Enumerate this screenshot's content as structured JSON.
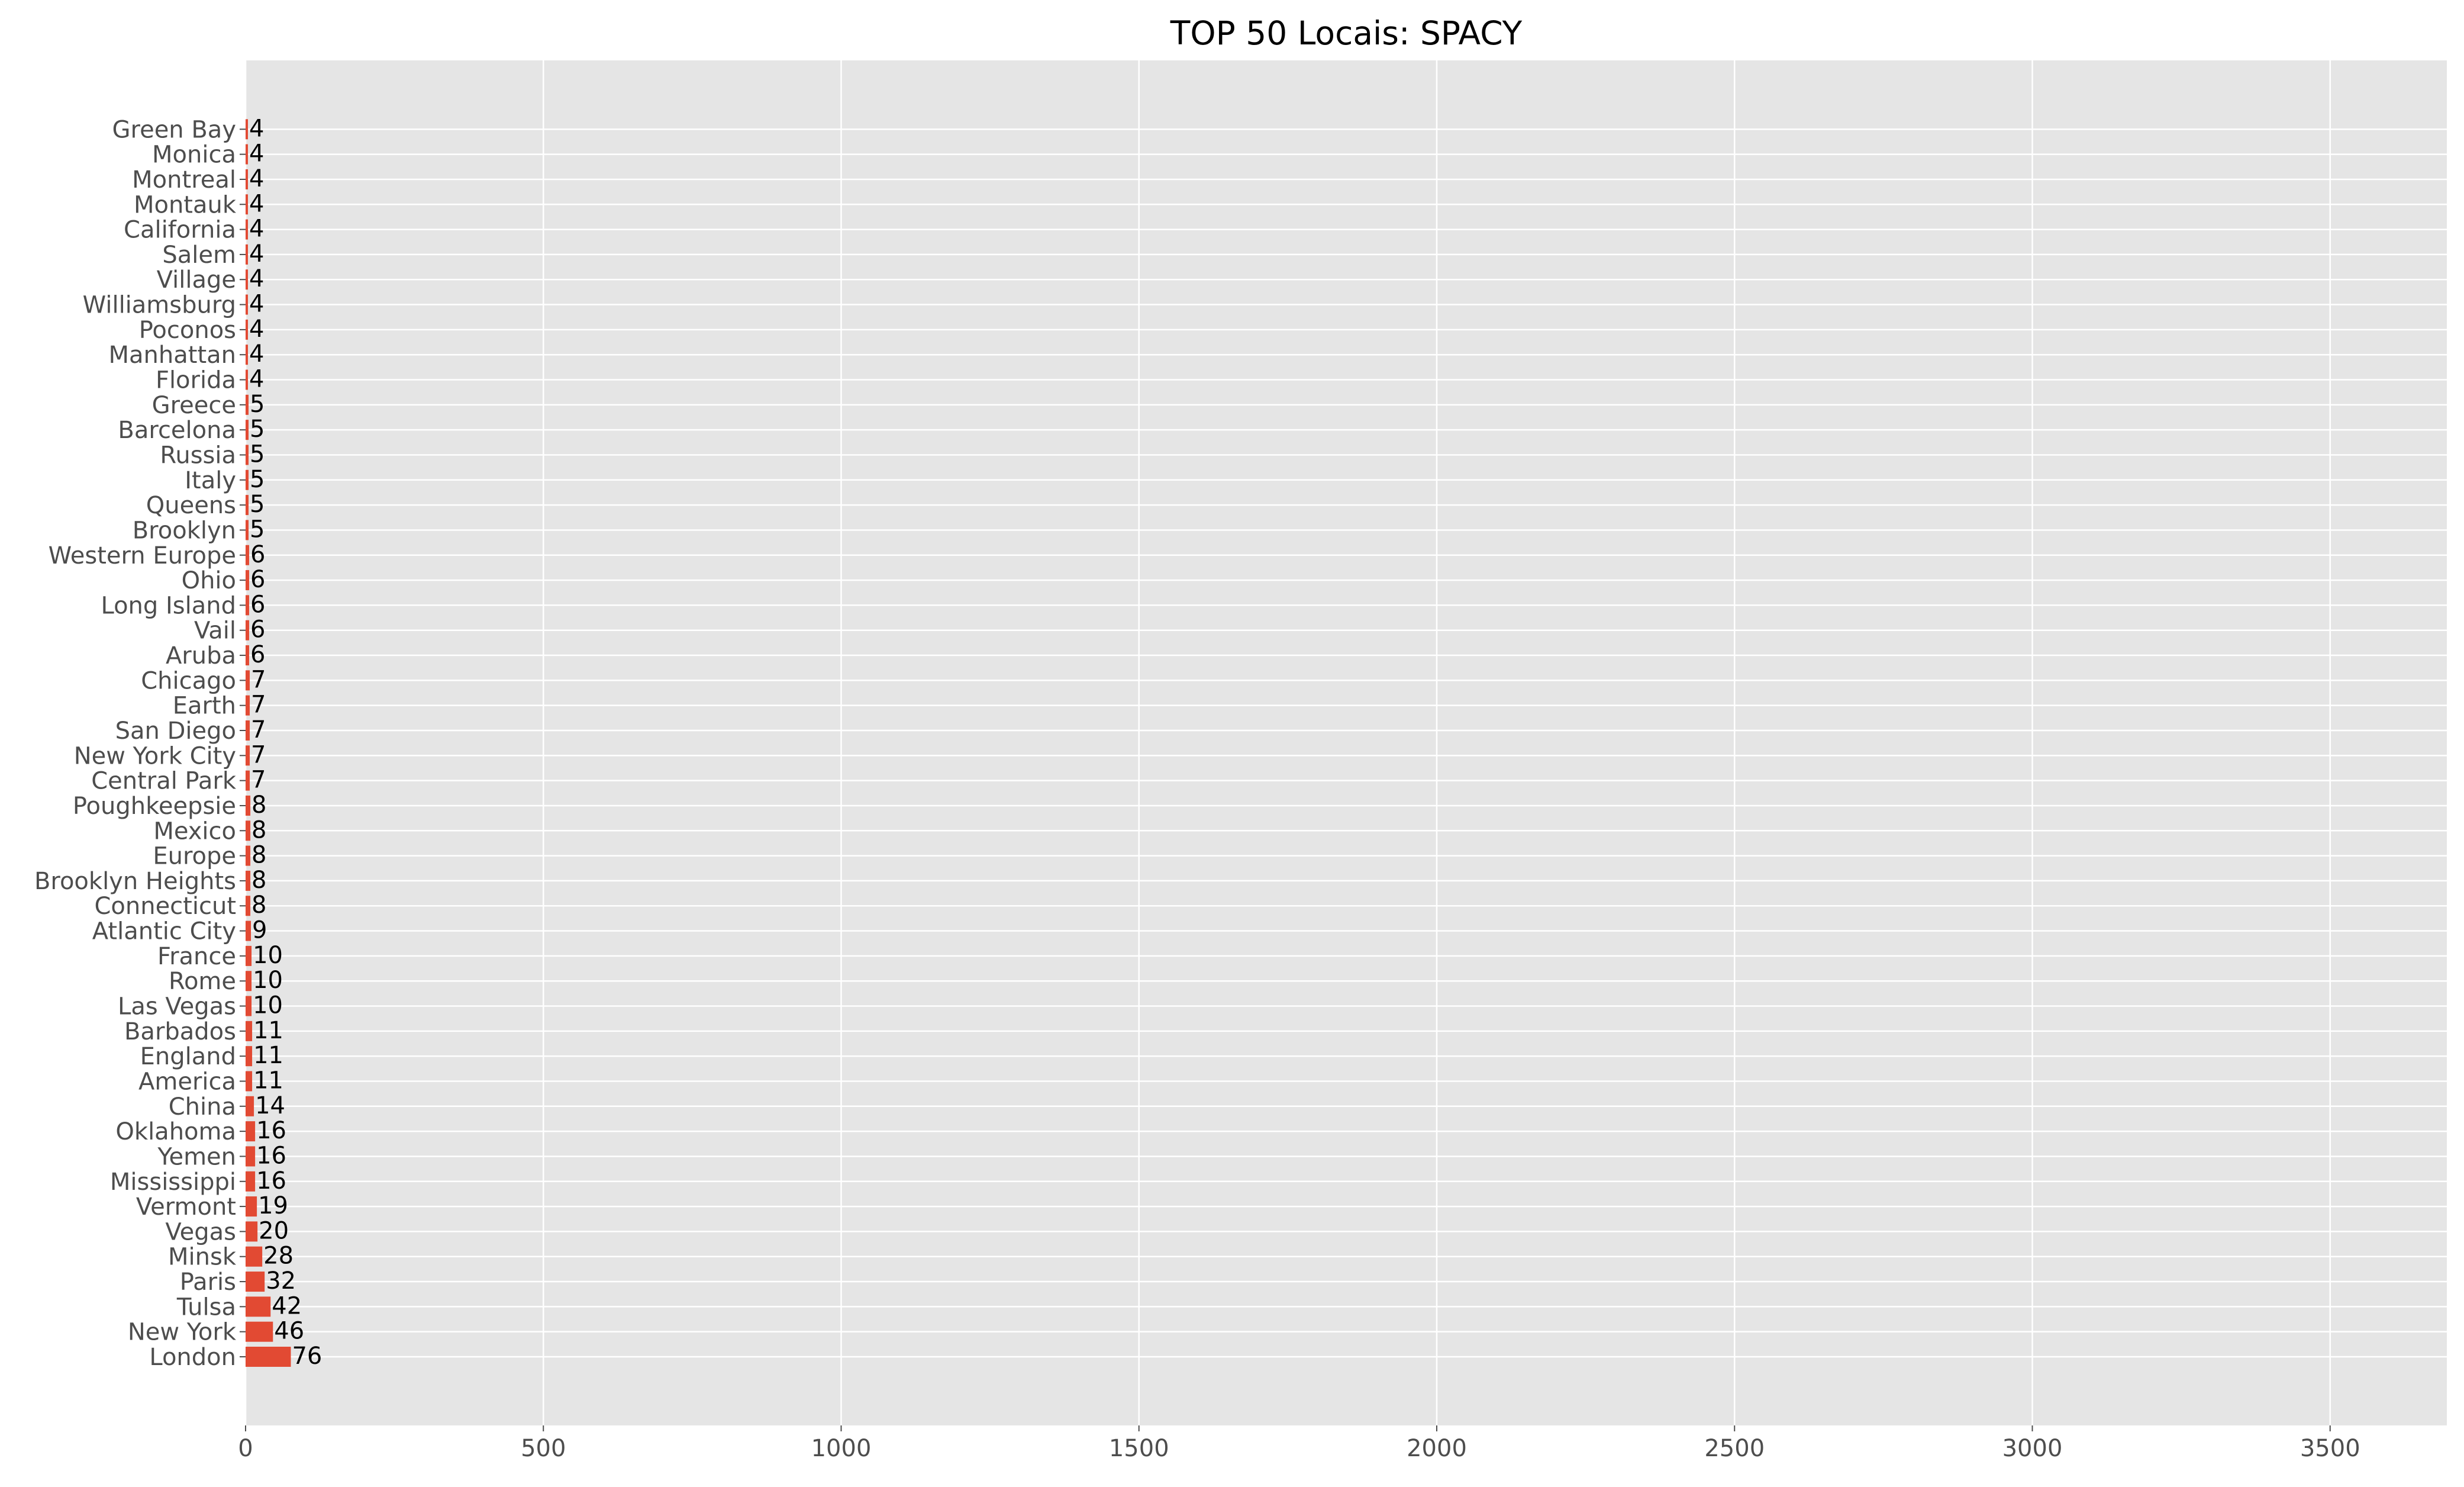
{
  "chart_data": {
    "type": "bar",
    "orientation": "horizontal",
    "title": "TOP 50 Locais: SPACY",
    "xlabel": "",
    "ylabel": "",
    "xlim": [
      0,
      3700
    ],
    "xticks": [
      0,
      500,
      1000,
      1500,
      2000,
      2500,
      3000,
      3500
    ],
    "grid": true,
    "legend": "none",
    "style": {
      "background": "#e5e5e5",
      "grid_color": "#ffffff",
      "bar_color": "#e24a33",
      "tick_label_color": "#4d4d4d",
      "text_color": "#000000"
    },
    "categories": [
      "London",
      "New York",
      "Tulsa",
      "Paris",
      "Minsk",
      "Vegas",
      "Vermont",
      "Mississippi",
      "Yemen",
      "Oklahoma",
      "China",
      "America",
      "England",
      "Barbados",
      "Las Vegas",
      "Rome",
      "France",
      "Atlantic City",
      "Connecticut",
      "Brooklyn Heights",
      "Europe",
      "Mexico",
      "Poughkeepsie",
      "Central Park",
      "New York City",
      "San Diego",
      "Earth",
      "Chicago",
      "Aruba",
      "Vail",
      "Long Island",
      "Ohio",
      "Western Europe",
      "Brooklyn",
      "Queens",
      "Italy",
      "Russia",
      "Barcelona",
      "Greece",
      "Florida",
      "Manhattan",
      "Poconos",
      "Williamsburg",
      "Village",
      "Salem",
      "California",
      "Montauk",
      "Montreal",
      "Monica",
      "Green Bay"
    ],
    "values": [
      76,
      46,
      42,
      32,
      28,
      20,
      19,
      16,
      16,
      16,
      14,
      11,
      11,
      11,
      10,
      10,
      10,
      9,
      8,
      8,
      8,
      8,
      8,
      7,
      7,
      7,
      7,
      7,
      6,
      6,
      6,
      6,
      6,
      5,
      5,
      5,
      5,
      5,
      5,
      4,
      4,
      4,
      4,
      4,
      4,
      4,
      4,
      4,
      4,
      4
    ]
  }
}
